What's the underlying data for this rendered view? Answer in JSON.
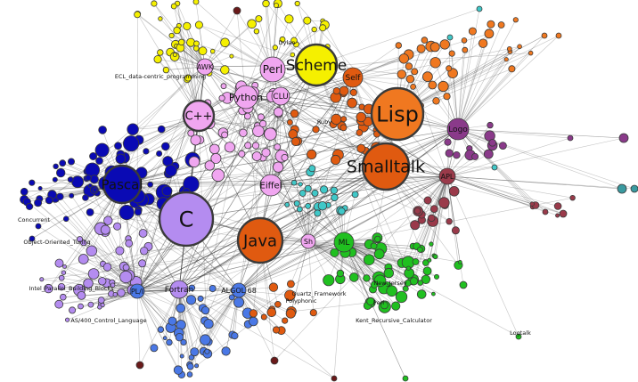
{
  "graph": {
    "colors": {
      "purple_light": "#b48cf0",
      "pink": "#f0a6f0",
      "yellow": "#f5f000",
      "orange": "#f07820",
      "orange_dark": "#e05a10",
      "navy": "#0a0ab4",
      "blue": "#4a78e6",
      "green": "#20c020",
      "plum": "#8a3a8a",
      "maroon": "#9a3a4a",
      "cyan": "#40c8c8",
      "teal": "#3a9aa0",
      "brown": "#6a1a1a"
    },
    "major_labels": {
      "c": "C",
      "lisp": "Lisp",
      "smalltalk": "Smalltalk",
      "java": "Java",
      "scheme": "Scheme",
      "pascal": "Pascal",
      "cpp": "C++",
      "perl": "Perl",
      "python": "Python",
      "clu": "CLU",
      "eiffel": "Eiffel",
      "ml": "ML",
      "self": "Self",
      "logo": "Logo",
      "apl": "APL",
      "awk": "AWK",
      "fortran": "Fortran",
      "pli": "PL/I",
      "algol": "ALGOL 68",
      "sh": "Sh"
    },
    "minor_labels": {
      "object_oriented_turing": "Object-Oriented_Turing",
      "concurrent": "Concurrent",
      "intel_parallel": "Intel_Parallel_Building_Blocks",
      "as400": "AS/400_Control_Language",
      "ecl": "ECL_data-centric_programming",
      "ruby": "Ruby",
      "dylan": "Dylan",
      "kent_recursive": "Kent_Recursive_Calculator",
      "new_jersey": "New_Jersey",
      "polyphonic": "Polyphonic",
      "quartz": "Quartz_Framework",
      "logtalk": "Logtalk",
      "perl_label": "Perl"
    }
  }
}
